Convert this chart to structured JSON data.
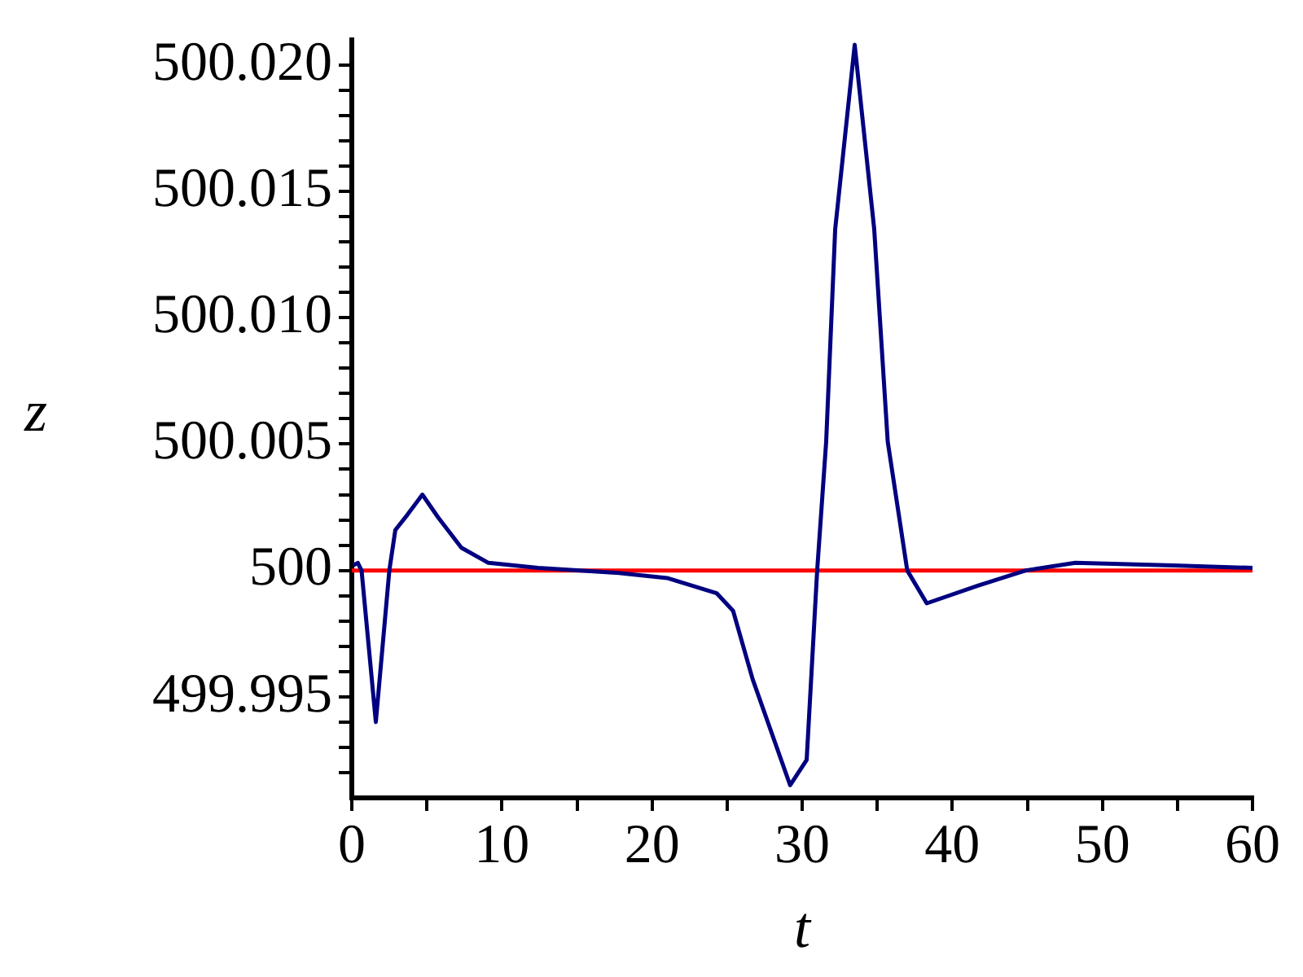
{
  "chart_data": {
    "type": "line",
    "xlabel": "t",
    "ylabel": "z",
    "xlim": [
      0,
      60
    ],
    "ylim": [
      499.991,
      500.021
    ],
    "xticks": [
      0,
      {
        "value": 5,
        "label": null
      },
      10,
      {
        "value": 15,
        "label": null
      },
      20,
      {
        "value": 25,
        "label": null
      },
      30,
      {
        "value": 35,
        "label": null
      },
      40,
      {
        "value": 45,
        "label": null
      },
      50,
      {
        "value": 55,
        "label": null
      },
      60
    ],
    "yticks": [
      {
        "value": 499.992,
        "label": null
      },
      {
        "value": 499.993,
        "label": null
      },
      {
        "value": 499.994,
        "label": null
      },
      499.995,
      {
        "value": 499.996,
        "label": null
      },
      {
        "value": 499.997,
        "label": null
      },
      {
        "value": 499.998,
        "label": null
      },
      {
        "value": 499.999,
        "label": null
      },
      500,
      {
        "value": 500.001,
        "label": null
      },
      {
        "value": 500.002,
        "label": null
      },
      {
        "value": 500.003,
        "label": null
      },
      {
        "value": 500.004,
        "label": null
      },
      500.005,
      {
        "value": 500.006,
        "label": null
      },
      {
        "value": 500.007,
        "label": null
      },
      {
        "value": 500.008,
        "label": null
      },
      {
        "value": 500.009,
        "label": null
      },
      {
        "value": 500.01,
        "label": "500.010"
      },
      {
        "value": 500.011,
        "label": null
      },
      {
        "value": 500.012,
        "label": null
      },
      {
        "value": 500.013,
        "label": null
      },
      {
        "value": 500.014,
        "label": null
      },
      500.015,
      {
        "value": 500.016,
        "label": null
      },
      {
        "value": 500.017,
        "label": null
      },
      {
        "value": 500.018,
        "label": null
      },
      {
        "value": 500.019,
        "label": null
      },
      {
        "value": 500.02,
        "label": "500.020"
      }
    ],
    "grid": false,
    "legend": false,
    "marker": "none",
    "line_style": "solid",
    "series": [
      {
        "color": "#000080",
        "x": [
          0.1,
          0.4,
          0.65,
          1.6,
          2.5,
          2.9,
          3.7,
          4.7,
          5.75,
          7.3,
          9.1,
          12.4,
          17.8,
          21,
          24.3,
          25.4,
          26.7,
          29.2,
          30.3,
          31.0,
          31.6,
          32.2,
          33.5,
          34.8,
          35.7,
          37.0,
          38.3,
          41.7,
          44.9,
          48.2,
          54.7,
          60
        ],
        "values": [
          500.0002,
          500.0003,
          500.0,
          499.994,
          500.0,
          500.0016,
          500.0022,
          500.003,
          500.0021,
          500.0009,
          500.0003,
          500.0001,
          499.9999,
          499.9997,
          499.9991,
          499.9984,
          499.9957,
          499.9915,
          499.9925,
          500.0,
          500.0051,
          500.0135,
          500.0208,
          500.0135,
          500.0051,
          500.0,
          499.9987,
          499.9994,
          500.0,
          500.0003,
          500.0002,
          500.0001
        ]
      },
      {
        "color": "#ff0000",
        "x": [
          0,
          60
        ],
        "values": [
          500,
          500
        ]
      }
    ]
  }
}
